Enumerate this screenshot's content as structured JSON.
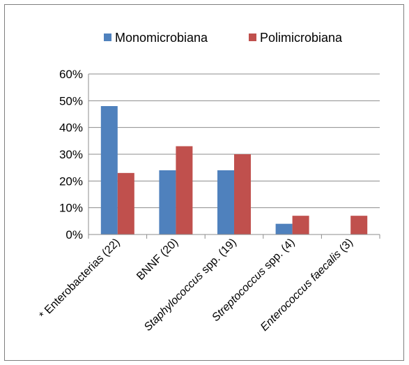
{
  "chart_data": {
    "type": "bar",
    "categories": [
      "* Enterobacterias (22)",
      "BNNF (20)",
      "Staphylococcus spp. (19)",
      "Streptococcus spp. (4)",
      "Enterococcus faecalis (3)"
    ],
    "category_parts": [
      {
        "prefix": "* Enterobacterias (22)",
        "italic": "",
        "suffix": ""
      },
      {
        "prefix": "BNNF (20)",
        "italic": "",
        "suffix": ""
      },
      {
        "prefix": "",
        "italic": "Staphylococcus",
        "suffix": " spp. (19)"
      },
      {
        "prefix": "",
        "italic": "Streptococcus",
        "suffix": " spp. (4)"
      },
      {
        "prefix": "",
        "italic": "Enterococcus faecalis",
        "suffix": " (3)"
      }
    ],
    "series": [
      {
        "name": "Monomicrobiana",
        "color": "#4f81bd",
        "values": [
          48,
          24,
          24,
          4,
          0
        ]
      },
      {
        "name": "Polimicrobiana",
        "color": "#c0504d",
        "values": [
          23,
          33,
          30,
          7,
          7
        ]
      }
    ],
    "yticks": [
      "0%",
      "10%",
      "20%",
      "30%",
      "40%",
      "50%",
      "60%"
    ],
    "ylim": [
      0,
      60
    ],
    "grid": true,
    "legend_position": "top"
  }
}
